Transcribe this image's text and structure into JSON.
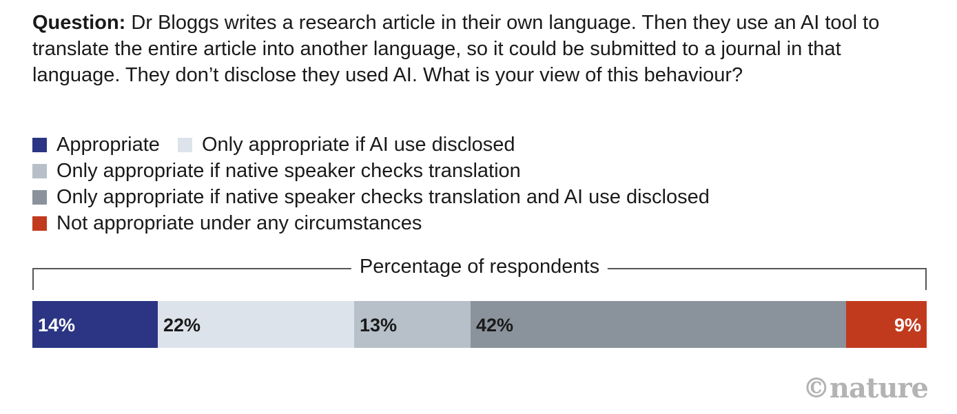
{
  "question": {
    "label": "Question:",
    "text": "Dr Bloggs writes a research article in their own language. Then they use an AI tool to translate the entire article into another language, so it could be submitted to a journal in that language. They don’t disclose they used AI. What is your view of this behaviour?"
  },
  "chart_data": {
    "type": "bar",
    "stacked": true,
    "orientation": "horizontal",
    "xlabel": "Percentage of respondents",
    "series": [
      {
        "name": "Appropriate",
        "value": 14,
        "label": "14%",
        "color": "#2b3583",
        "text_color": "#ffffff"
      },
      {
        "name": "Only appropriate if AI use disclosed",
        "value": 22,
        "label": "22%",
        "color": "#dde3ea",
        "text_color": "#1a1a1a"
      },
      {
        "name": "Only appropriate if native speaker checks translation",
        "value": 13,
        "label": "13%",
        "color": "#b7c0c9",
        "text_color": "#1a1a1a"
      },
      {
        "name": "Only appropriate if native speaker checks translation and AI use disclosed",
        "value": 42,
        "label": "42%",
        "color": "#8a939c",
        "text_color": "#1a1a1a"
      },
      {
        "name": "Not appropriate under any circumstances",
        "value": 9,
        "label": "9%",
        "color": "#c23a1e",
        "text_color": "#ffffff"
      }
    ],
    "legend_rows": [
      [
        0,
        1
      ],
      [
        2
      ],
      [
        3
      ],
      [
        4
      ]
    ]
  },
  "logo": "©nature"
}
